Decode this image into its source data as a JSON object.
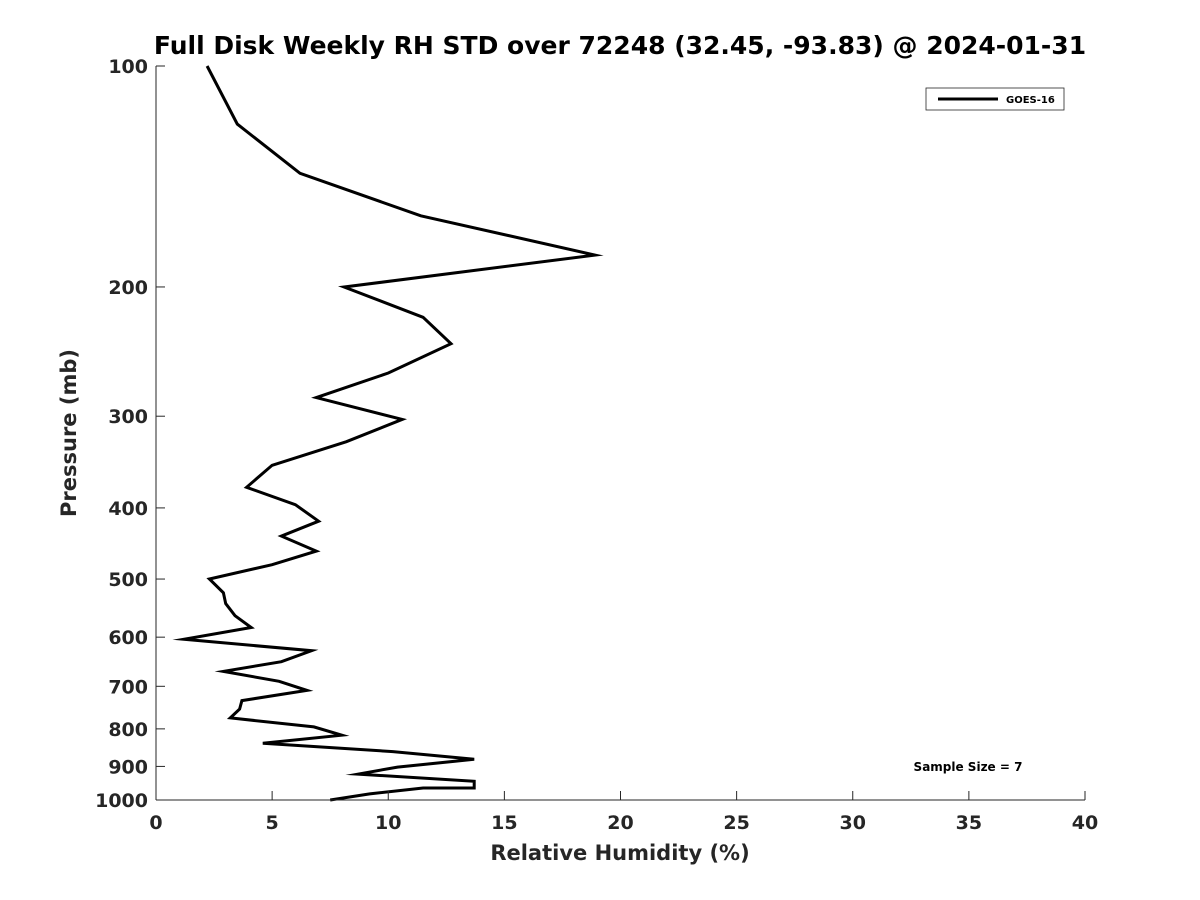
{
  "chart_data": {
    "type": "line",
    "title": "Full Disk Weekly RH STD over 72248 (32.45, -93.83) @ 2024-01-31",
    "xlabel": "Relative Humidity (%)",
    "ylabel": "Pressure (mb)",
    "xlim": [
      0,
      40
    ],
    "ylim": [
      100,
      1000
    ],
    "y_scale": "log",
    "y_inverted": true,
    "x_ticks": [
      0,
      5,
      10,
      15,
      20,
      25,
      30,
      35,
      40
    ],
    "x_tick_labels": [
      "0",
      "5",
      "10",
      "15",
      "20",
      "25",
      "30",
      "35",
      "40"
    ],
    "y_ticks": [
      100,
      200,
      300,
      400,
      500,
      600,
      700,
      800,
      900,
      1000
    ],
    "y_tick_labels": [
      "100",
      "200",
      "300",
      "400",
      "500",
      "600",
      "700",
      "800",
      "900",
      "1000"
    ],
    "grid": false,
    "legend_position": "top-right",
    "series": [
      {
        "name": "GOES-16",
        "color": "#000000",
        "x": [
          2.2,
          3.5,
          6.2,
          11.4,
          18.9,
          8.1,
          11.5,
          12.7,
          10.0,
          6.9,
          10.6,
          8.2,
          5.0,
          3.9,
          6.0,
          7.0,
          5.4,
          6.9,
          5.0,
          2.3,
          2.9,
          3.0,
          3.4,
          4.1,
          1.2,
          6.7,
          5.4,
          2.9,
          5.3,
          6.5,
          3.7,
          3.6,
          3.2,
          6.8,
          8.0,
          4.6,
          10.2,
          13.7,
          10.4,
          8.7,
          13.7,
          13.7,
          11.5,
          9.2,
          7.5
        ],
        "y": [
          100,
          120,
          140,
          160,
          181,
          200,
          220,
          239,
          262,
          283,
          303,
          325,
          350,
          375,
          396,
          417,
          437,
          458,
          478,
          500,
          522,
          540,
          561,
          582,
          604,
          626,
          648,
          668,
          689,
          709,
          732,
          752,
          773,
          795,
          816,
          837,
          859,
          880,
          902,
          922,
          943,
          963,
          963,
          981,
          1000
        ]
      }
    ],
    "annotations": [
      "Sample Size = 7"
    ]
  }
}
